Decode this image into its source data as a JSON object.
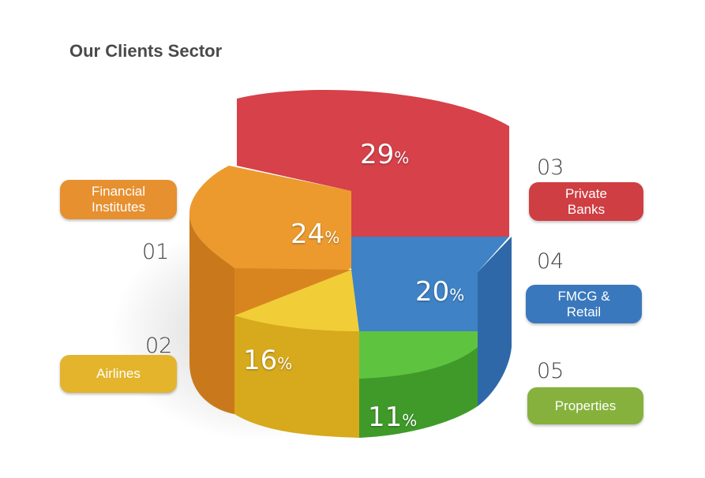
{
  "title": "Our Clients Sector",
  "colors": {
    "red": "#d03a3c",
    "orange": "#ec9a2e",
    "yellow": "#e8c22c",
    "blue": "#3d7cc0",
    "green": "#58b53a",
    "olive": "#8bb43a"
  },
  "chart_data": {
    "type": "pie",
    "title": "Our Clients Sector",
    "categories": [
      "Financial Institutes",
      "Airlines",
      "Private Banks",
      "FMCG & Retail",
      "Properties"
    ],
    "values": [
      24,
      16,
      29,
      20,
      11
    ],
    "unit": "%"
  },
  "labels": [
    {
      "num": "01",
      "text": "Financial\nInstitutes",
      "value": "24",
      "sign": "%",
      "color": "#e6902f"
    },
    {
      "num": "02",
      "text": "Airlines",
      "value": "16",
      "sign": "%",
      "color": "#e3b42c"
    },
    {
      "num": "03",
      "text": "Private\nBanks",
      "value": "29",
      "sign": "%",
      "color": "#cf3e42"
    },
    {
      "num": "04",
      "text": "FMCG &\nRetail",
      "value": "20",
      "sign": "%",
      "color": "#3a78bd"
    },
    {
      "num": "05",
      "text": "Properties",
      "value": "11",
      "sign": "%",
      "color": "#86b13c"
    }
  ]
}
